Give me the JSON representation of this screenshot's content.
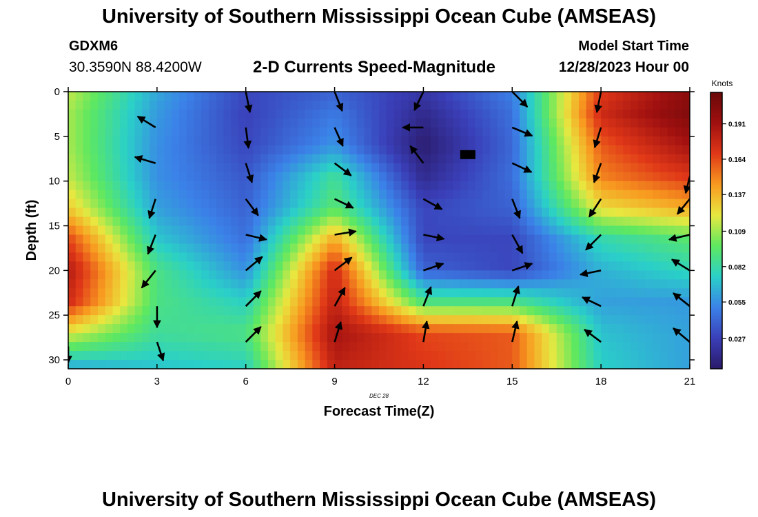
{
  "header": {
    "title": "University of Southern Mississippi Ocean Cube (AMSEAS)",
    "station": "GDXM6",
    "coords": "30.3590N  88.4200W",
    "plot_title": "2-D Currents Speed-Magnitude",
    "model_start_label": "Model Start Time",
    "model_start_value": "12/28/2023 Hour 00"
  },
  "footer": {
    "title": "University of Southern Mississippi Ocean Cube (AMSEAS)"
  },
  "chart_data": {
    "type": "heatmap",
    "title": "2-D Currents Speed-Magnitude",
    "xlabel": "Forecast Time(Z)",
    "ylabel": "Depth (ft)",
    "date_label": "DEC 28",
    "xlim": [
      0,
      21
    ],
    "ylim": [
      31,
      0
    ],
    "x_ticks": [
      "0",
      "3",
      "6",
      "9",
      "12",
      "15",
      "18",
      "21"
    ],
    "y_ticks": [
      "0",
      "5",
      "10",
      "15",
      "20",
      "25",
      "30"
    ],
    "colorbar": {
      "label": "Knots",
      "min": 0.004,
      "max": 0.215,
      "ticks": [
        "0.027",
        "0.055",
        "0.082",
        "0.109",
        "0.137",
        "0.164",
        "0.191"
      ],
      "tick_values": [
        0.027,
        0.055,
        0.082,
        0.109,
        0.137,
        0.164,
        0.191
      ],
      "colors": [
        "#2a1a6a",
        "#3a3fb8",
        "#3b82e8",
        "#2ad0c8",
        "#5ee860",
        "#e8e840",
        "#f89a20",
        "#e03818",
        "#a01010",
        "#6a0808"
      ]
    },
    "speed_grid": {
      "times": [
        0,
        3,
        6,
        9,
        12,
        15,
        18,
        21
      ],
      "depths": [
        0,
        2.5,
        6,
        9.5,
        13,
        16.5,
        20,
        23.5,
        27,
        31
      ],
      "values": [
        [
          0.115,
          0.062,
          0.03,
          0.04,
          0.022,
          0.05,
          0.168,
          0.2
        ],
        [
          0.11,
          0.058,
          0.028,
          0.048,
          0.014,
          0.045,
          0.175,
          0.205
        ],
        [
          0.11,
          0.055,
          0.03,
          0.056,
          0.006,
          0.042,
          0.16,
          0.19
        ],
        [
          0.115,
          0.055,
          0.036,
          0.085,
          0.015,
          0.044,
          0.15,
          0.17
        ],
        [
          0.13,
          0.06,
          0.04,
          0.095,
          0.03,
          0.04,
          0.125,
          0.14
        ],
        [
          0.165,
          0.072,
          0.045,
          0.14,
          0.03,
          0.03,
          0.08,
          0.095
        ],
        [
          0.185,
          0.09,
          0.055,
          0.175,
          0.04,
          0.03,
          0.065,
          0.078
        ],
        [
          0.175,
          0.09,
          0.075,
          0.18,
          0.09,
          0.09,
          0.06,
          0.058
        ],
        [
          0.12,
          0.085,
          0.09,
          0.19,
          0.165,
          0.16,
          0.07,
          0.06
        ],
        [
          0.06,
          0.07,
          0.075,
          0.18,
          0.17,
          0.16,
          0.075,
          0.06
        ]
      ]
    },
    "vectors": [
      {
        "t": 0,
        "d": 28.5,
        "dx": 0,
        "dy": 24
      },
      {
        "t": 2.95,
        "d": 4,
        "dx": -26,
        "dy": -16
      },
      {
        "t": 2.95,
        "d": 8,
        "dx": -30,
        "dy": -9
      },
      {
        "t": 2.95,
        "d": 12,
        "dx": -9,
        "dy": 28
      },
      {
        "t": 2.95,
        "d": 16,
        "dx": -11,
        "dy": 28
      },
      {
        "t": 2.95,
        "d": 20,
        "dx": -20,
        "dy": 25
      },
      {
        "t": 3,
        "d": 24,
        "dx": 0,
        "dy": 31
      },
      {
        "t": 3,
        "d": 28,
        "dx": 9,
        "dy": 27
      },
      {
        "t": 6,
        "d": 0,
        "dx": 6,
        "dy": 30
      },
      {
        "t": 6,
        "d": 4,
        "dx": 4,
        "dy": 30
      },
      {
        "t": 6,
        "d": 8,
        "dx": 9,
        "dy": 28
      },
      {
        "t": 6,
        "d": 12,
        "dx": 18,
        "dy": 24
      },
      {
        "t": 6,
        "d": 16,
        "dx": 30,
        "dy": 7
      },
      {
        "t": 6,
        "d": 20,
        "dx": 24,
        "dy": -20
      },
      {
        "t": 6,
        "d": 24,
        "dx": 22,
        "dy": -22
      },
      {
        "t": 6,
        "d": 28,
        "dx": 22,
        "dy": -22
      },
      {
        "t": 9,
        "d": 0,
        "dx": 11,
        "dy": 28
      },
      {
        "t": 9,
        "d": 4,
        "dx": 12,
        "dy": 27
      },
      {
        "t": 9,
        "d": 8,
        "dx": 24,
        "dy": 18
      },
      {
        "t": 9,
        "d": 12,
        "dx": 27,
        "dy": 13
      },
      {
        "t": 9,
        "d": 16,
        "dx": 31,
        "dy": -5
      },
      {
        "t": 9,
        "d": 20,
        "dx": 25,
        "dy": -19
      },
      {
        "t": 9,
        "d": 24,
        "dx": 15,
        "dy": -27
      },
      {
        "t": 9,
        "d": 28,
        "dx": 9,
        "dy": -29
      },
      {
        "t": 12,
        "d": 0,
        "dx": -13,
        "dy": 27
      },
      {
        "t": 12,
        "d": 4,
        "dx": -30,
        "dy": 0
      },
      {
        "t": 12,
        "d": 8,
        "dx": -19,
        "dy": -25
      },
      {
        "t": 12,
        "d": 12,
        "dx": 27,
        "dy": 15
      },
      {
        "t": 12,
        "d": 16,
        "dx": 30,
        "dy": 6
      },
      {
        "t": 12,
        "d": 20,
        "dx": 29,
        "dy": -10
      },
      {
        "t": 12,
        "d": 24,
        "dx": 11,
        "dy": -28
      },
      {
        "t": 12,
        "d": 28,
        "dx": 5,
        "dy": -30
      },
      {
        "t": 15,
        "d": 0,
        "dx": 22,
        "dy": 22
      },
      {
        "t": 15,
        "d": 4,
        "dx": 29,
        "dy": 12
      },
      {
        "t": 15,
        "d": 8,
        "dx": 28,
        "dy": 13
      },
      {
        "t": 15,
        "d": 12,
        "dx": 11,
        "dy": 28
      },
      {
        "t": 15,
        "d": 16,
        "dx": 15,
        "dy": 27
      },
      {
        "t": 15,
        "d": 20,
        "dx": 29,
        "dy": -10
      },
      {
        "t": 15,
        "d": 24,
        "dx": 9,
        "dy": -29
      },
      {
        "t": 15,
        "d": 28,
        "dx": 7,
        "dy": -30
      },
      {
        "t": 18,
        "d": 0,
        "dx": -6,
        "dy": 30
      },
      {
        "t": 18,
        "d": 4,
        "dx": -9,
        "dy": 29
      },
      {
        "t": 18,
        "d": 8,
        "dx": -10,
        "dy": 28
      },
      {
        "t": 18,
        "d": 12,
        "dx": -17,
        "dy": 26
      },
      {
        "t": 18,
        "d": 16,
        "dx": -22,
        "dy": 22
      },
      {
        "t": 18,
        "d": 20,
        "dx": -30,
        "dy": 6
      },
      {
        "t": 18,
        "d": 24,
        "dx": -27,
        "dy": -13
      },
      {
        "t": 18,
        "d": 28,
        "dx": -24,
        "dy": -18
      },
      {
        "t": 21,
        "d": 9.5,
        "dx": -6,
        "dy": 24
      },
      {
        "t": 21,
        "d": 12,
        "dx": -18,
        "dy": 22
      },
      {
        "t": 21,
        "d": 16,
        "dx": -30,
        "dy": 7
      },
      {
        "t": 21,
        "d": 20,
        "dx": -26,
        "dy": -16
      },
      {
        "t": 21,
        "d": 24,
        "dx": -24,
        "dy": -19
      },
      {
        "t": 21,
        "d": 28,
        "dx": -24,
        "dy": -20
      }
    ],
    "marker": {
      "t": 13.5,
      "d": 7
    }
  }
}
